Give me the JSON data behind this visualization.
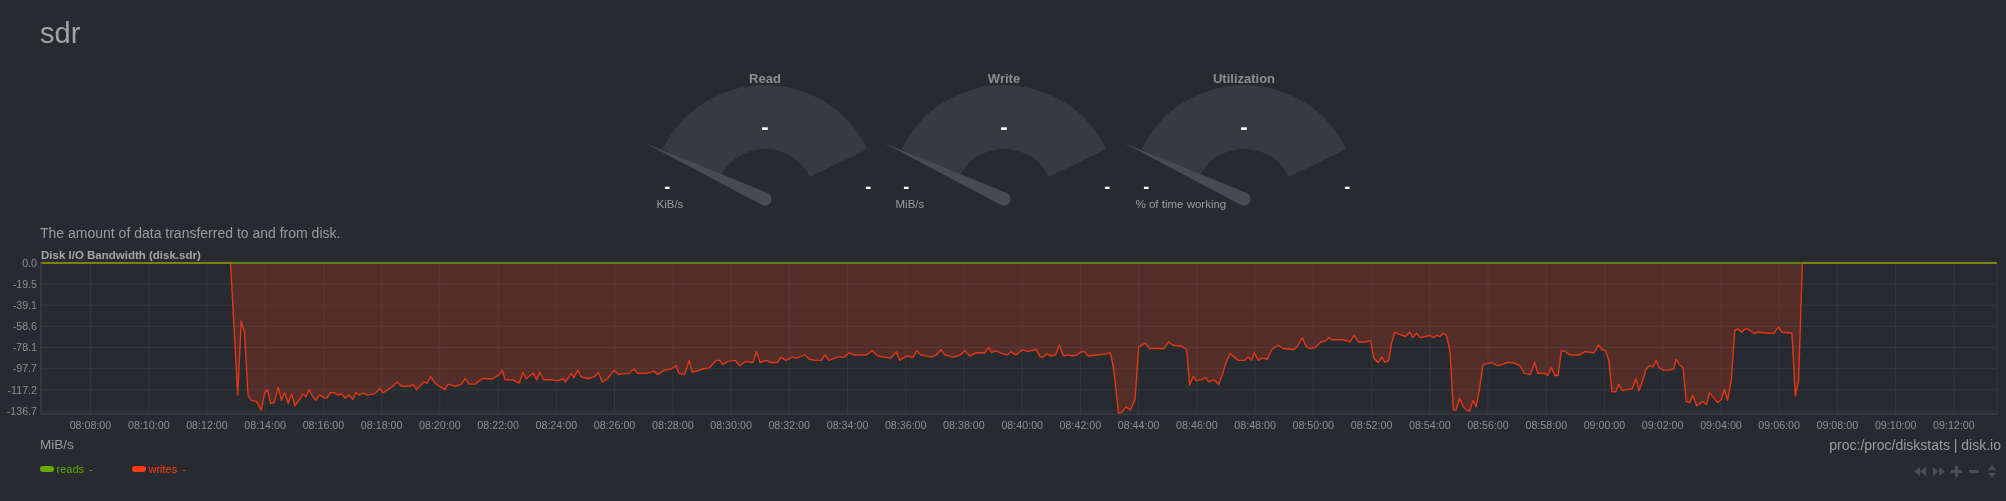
{
  "chart_data": [
    {
      "type": "other",
      "title": "sdr"
    },
    {
      "type": "other",
      "title": "Read",
      "ylabel": "KiB/s",
      "annotations": [
        "-",
        "-",
        "-"
      ]
    },
    {
      "type": "other",
      "title": "Write",
      "ylabel": "MiB/s",
      "annotations": [
        "-",
        "-",
        "-"
      ]
    },
    {
      "type": "other",
      "title": "Utilization",
      "ylabel": "% of time working",
      "annotations": [
        "-",
        "-",
        "-"
      ]
    },
    {
      "type": "area",
      "title": "Disk I/O Bandwidth (disk.sdr)",
      "subtitle": "The amount of data transferred to and from disk.",
      "annotations": [
        "MiB/s",
        "proc:/proc/diskstats | disk.io",
        "-",
        "-"
      ],
      "xlim": [
        8.105,
        9.2247
      ],
      "xticks": [
        {
          "value": 8.1333,
          "label": "08:08:00"
        },
        {
          "value": 8.1667,
          "label": "08:10:00"
        },
        {
          "value": 8.2,
          "label": "08:12:00"
        },
        {
          "value": 8.2333,
          "label": "08:14:00"
        },
        {
          "value": 8.2667,
          "label": "08:16:00"
        },
        {
          "value": 8.3,
          "label": "08:18:00"
        },
        {
          "value": 8.3333,
          "label": "08:20:00"
        },
        {
          "value": 8.3667,
          "label": "08:22:00"
        },
        {
          "value": 8.4,
          "label": "08:24:00"
        },
        {
          "value": 8.4333,
          "label": "08:26:00"
        },
        {
          "value": 8.4667,
          "label": "08:28:00"
        },
        {
          "value": 8.5,
          "label": "08:30:00"
        },
        {
          "value": 8.5333,
          "label": "08:32:00"
        },
        {
          "value": 8.5667,
          "label": "08:34:00"
        },
        {
          "value": 8.6,
          "label": "08:36:00"
        },
        {
          "value": 8.6333,
          "label": "08:38:00"
        },
        {
          "value": 8.6667,
          "label": "08:40:00"
        },
        {
          "value": 8.7,
          "label": "08:42:00"
        },
        {
          "value": 8.7333,
          "label": "08:44:00"
        },
        {
          "value": 8.7667,
          "label": "08:46:00"
        },
        {
          "value": 8.8,
          "label": "08:48:00"
        },
        {
          "value": 8.8333,
          "label": "08:50:00"
        },
        {
          "value": 8.8667,
          "label": "08:52:00"
        },
        {
          "value": 8.9,
          "label": "08:54:00"
        },
        {
          "value": 8.9333,
          "label": "08:56:00"
        },
        {
          "value": 8.9667,
          "label": "08:58:00"
        },
        {
          "value": 9,
          "label": "09:00:00"
        },
        {
          "value": 9.0333,
          "label": "09:02:00"
        },
        {
          "value": 9.0667,
          "label": "09:04:00"
        },
        {
          "value": 9.1,
          "label": "09:06:00"
        },
        {
          "value": 9.1333,
          "label": "09:08:00"
        },
        {
          "value": 9.1667,
          "label": "09:10:00"
        },
        {
          "value": 9.2,
          "label": "09:12:00"
        }
      ],
      "ylim": [
        -139.6,
        0.9
      ],
      "yticks": [
        {
          "value": 0,
          "label": "0.0"
        },
        -19.5,
        -39.1,
        -58.6,
        -78.1,
        -97.7,
        -117.2,
        -136.7
      ],
      "grid": true,
      "legend": "bottom left",
      "series": [
        {
          "name": "reads",
          "type": "line",
          "color": "#66aa00",
          "x": [
            8.105,
            9.2247
          ],
          "values": [
            0,
            0
          ]
        },
        {
          "name": "writes",
          "color": "#fe3912",
          "x": [
            8.105,
            8.2135,
            8.2176,
            8.2196,
            8.2215,
            8.2235,
            8.2253,
            8.2283,
            8.2311,
            8.233,
            8.2346,
            8.2365,
            8.2385,
            8.2408,
            8.2426,
            8.2445,
            8.2465,
            8.2485,
            8.2503,
            8.2526,
            8.2551,
            8.2566,
            8.2585,
            8.2603,
            8.2623,
            8.2643,
            8.2666,
            8.2686,
            8.2706,
            8.273,
            8.2751,
            8.2771,
            8.2791,
            8.2811,
            8.2835,
            8.2853,
            8.2873,
            8.2896,
            8.2916,
            8.296,
            8.2991,
            8.3006,
            8.3036,
            8.3063,
            8.3088,
            8.3113,
            8.316,
            8.318,
            8.32,
            8.3241,
            8.3261,
            8.3281,
            8.3305,
            8.3361,
            8.3381,
            8.342,
            8.3458,
            8.3478,
            8.3501,
            8.3535,
            8.3573,
            8.3598,
            8.3636,
            8.3675,
            8.3691,
            8.3706,
            8.3751,
            8.3788,
            8.3808,
            8.3828,
            8.3866,
            8.3888,
            8.3905,
            8.3926,
            8.397,
            8.4008,
            8.4038,
            8.4053,
            8.4085,
            8.41,
            8.4123,
            8.414,
            8.4181,
            8.422,
            8.424,
            8.4263,
            8.4293,
            8.4331,
            8.4353,
            8.4416,
            8.4446,
            8.4463,
            8.4518,
            8.4556,
            8.4581,
            8.462,
            8.4658,
            8.4685,
            8.4701,
            8.4735,
            8.4761,
            8.4778,
            8.482,
            8.4838,
            8.4876,
            8.4915,
            8.4936,
            8.4953,
            8.498,
            8.5023,
            8.5051,
            8.5081,
            8.5125,
            8.5146,
            8.5166,
            8.5203,
            8.5228,
            8.5266,
            8.5286,
            8.5313,
            8.5351,
            8.5376,
            8.5423,
            8.5448,
            8.548,
            8.5518,
            8.5536,
            8.5561,
            8.5608,
            8.5651,
            8.5676,
            8.5705,
            8.5775,
            8.5808,
            8.5838,
            8.5915,
            8.5946,
            8.5966,
            8.6005,
            8.6043,
            8.6063,
            8.6086,
            8.6146,
            8.6175,
            8.6203,
            8.6223,
            8.6275,
            8.6313,
            8.6338,
            8.6366,
            8.6403,
            8.6453,
            8.6475,
            8.6491,
            8.6513,
            8.6556,
            8.6581,
            8.6603,
            8.6628,
            8.6671,
            8.6696,
            8.6748,
            8.677,
            8.6786,
            8.6808,
            8.6833,
            8.6858,
            8.688,
            8.6903,
            8.6928,
            8.6953,
            8.698,
            8.7005,
            8.7023,
            8.7043,
            8.7095,
            8.7146,
            8.7171,
            8.7191,
            8.7218,
            8.7236,
            8.7261,
            8.7286,
            8.7313,
            8.7333,
            8.7351,
            8.7371,
            8.7396,
            8.7441,
            8.748,
            8.7505,
            8.753,
            8.7581,
            8.7608,
            8.7625,
            8.7646,
            8.7663,
            8.769,
            8.7715,
            8.7736,
            8.7766,
            8.7791,
            8.7813,
            8.7838,
            8.7858,
            8.7903,
            8.7941,
            8.7961,
            8.798,
            8.7996,
            8.8018,
            8.8043,
            8.807,
            8.8095,
            8.8133,
            8.8158,
            8.8223,
            8.8243,
            8.827,
            8.8291,
            8.8313,
            8.8346,
            8.8376,
            8.8403,
            8.8423,
            8.8441,
            8.8466,
            8.8505,
            8.8543,
            8.8568,
            8.859,
            8.8628,
            8.8661,
            8.868,
            8.8705,
            8.8726,
            8.8743,
            8.8765,
            8.8781,
            8.88,
            8.8826,
            8.886,
            8.8885,
            8.8903,
            8.8923,
            8.8945,
            8.9,
            8.9021,
            8.904,
            8.9058,
            8.9078,
            8.9096,
            8.9116,
            8.9135,
            8.915,
            8.9171,
            8.9191,
            8.9211,
            8.9228,
            8.9248,
            8.9266,
            8.9285,
            8.9305,
            8.933,
            8.9353,
            8.9386,
            8.9413,
            8.9443,
            8.9476,
            8.9516,
            8.9541,
            8.9575,
            8.9601,
            8.9618,
            8.9658,
            8.9675,
            8.9696,
            8.9716,
            8.9735,
            8.9753,
            8.9778,
            8.98,
            8.983,
            8.9856,
            8.989,
            8.994,
            8.9966,
            8.9985,
            9.0005,
            9.0025,
            9.0043,
            9.0065,
            9.0081,
            9.0103,
            9.016,
            9.018,
            9.0198,
            9.0216,
            9.0236,
            9.0256,
            9.0278,
            9.0296,
            9.0313,
            9.034,
            9.037,
            9.0396,
            9.0411,
            9.043,
            9.045,
            9.0468,
            9.0488,
            9.0506,
            9.0528,
            9.0545,
            9.0563,
            9.0585,
            9.0601,
            9.0623,
            9.0648,
            9.067,
            9.0686,
            9.0705,
            9.0726,
            9.0746,
            9.0765,
            9.0785,
            9.0803,
            9.0821,
            9.0855,
            9.088,
            9.0945,
            9.097,
            9.0996,
            9.1016,
            9.1073,
            9.1093,
            9.1111,
            9.1133,
            9.2247
          ],
          "values": [
            0,
            0,
            -122,
            -54,
            -64,
            -122,
            -127,
            -128,
            -136,
            -120,
            -117,
            -130,
            -129,
            -115,
            -127,
            -120,
            -130,
            -121,
            -132,
            -127,
            -121,
            -124,
            -117,
            -123,
            -127,
            -122,
            -124,
            -125,
            -120,
            -120,
            -122,
            -121,
            -125,
            -122,
            -126,
            -120,
            -122,
            -120,
            -122,
            -121,
            -116,
            -120,
            -117,
            -114,
            -110,
            -114,
            -114,
            -112,
            -117,
            -110,
            -111,
            -105,
            -111,
            -117,
            -112,
            -114,
            -112,
            -107,
            -112,
            -112,
            -107,
            -107,
            -107,
            -103,
            -99,
            -108,
            -108,
            -111,
            -101,
            -107,
            -102,
            -108,
            -101,
            -108,
            -108,
            -109,
            -107,
            -110,
            -102,
            -106,
            -99,
            -105,
            -107,
            -105,
            -101,
            -110,
            -107,
            -99,
            -103,
            -102,
            -98,
            -102,
            -102,
            -100,
            -103,
            -99,
            -98,
            -95,
            -102,
            -103,
            -90,
            -101,
            -99,
            -98,
            -97,
            -90,
            -90,
            -94,
            -91,
            -90,
            -95,
            -91,
            -92,
            -82,
            -92,
            -90,
            -92,
            -92,
            -87,
            -90,
            -87,
            -88,
            -85,
            -89,
            -90,
            -90,
            -85,
            -90,
            -87,
            -87,
            -83,
            -85,
            -85,
            -81,
            -86,
            -88,
            -82,
            -90,
            -86,
            -87,
            -81,
            -85,
            -87,
            -85,
            -80,
            -85,
            -87,
            -85,
            -81,
            -86,
            -83,
            -83,
            -78,
            -83,
            -81,
            -84,
            -85,
            -82,
            -85,
            -80,
            -82,
            -80,
            -87,
            -87,
            -84,
            -86,
            -85,
            -76,
            -86,
            -85,
            -86,
            -85,
            -82,
            -82,
            -86,
            -85,
            -84,
            -83,
            -98,
            -139,
            -138,
            -133,
            -136,
            -126,
            -78,
            -76,
            -74,
            -79,
            -79,
            -79,
            -73,
            -76,
            -77,
            -80,
            -113,
            -105,
            -109,
            -108,
            -106,
            -110,
            -108,
            -112,
            -103,
            -90,
            -84,
            -90,
            -90,
            -87,
            -90,
            -83,
            -90,
            -88,
            -89,
            -80,
            -76,
            -79,
            -80,
            -77,
            -69,
            -77,
            -79,
            -78,
            -73,
            -72,
            -69,
            -71,
            -71,
            -71,
            -73,
            -67,
            -73,
            -73,
            -72,
            -88,
            -92,
            -87,
            -92,
            -90,
            -74,
            -64,
            -66,
            -68,
            -64,
            -69,
            -65,
            -69,
            -67,
            -69,
            -67,
            -68,
            -65,
            -67,
            -82,
            -136,
            -136,
            -125,
            -133,
            -136,
            -137,
            -127,
            -133,
            -116,
            -94,
            -93,
            -92,
            -95,
            -94,
            -92,
            -92,
            -95,
            -102,
            -103,
            -92,
            -102,
            -102,
            -104,
            -97,
            -104,
            -104,
            -81,
            -82,
            -85,
            -85,
            -85,
            -82,
            -83,
            -76,
            -80,
            -81,
            -90,
            -119,
            -119,
            -112,
            -118,
            -116,
            -107,
            -118,
            -110,
            -99,
            -95,
            -96,
            -90,
            -97,
            -99,
            -99,
            -98,
            -89,
            -94,
            -97,
            -128,
            -129,
            -122,
            -132,
            -130,
            -128,
            -131,
            -120,
            -124,
            -129,
            -126,
            -117,
            -127,
            -108,
            -62,
            -61,
            -64,
            -61,
            -61,
            -65,
            -64,
            -65,
            -65,
            -59,
            -64,
            -65,
            -123,
            -109,
            0,
            0
          ]
        }
      ]
    }
  ]
}
